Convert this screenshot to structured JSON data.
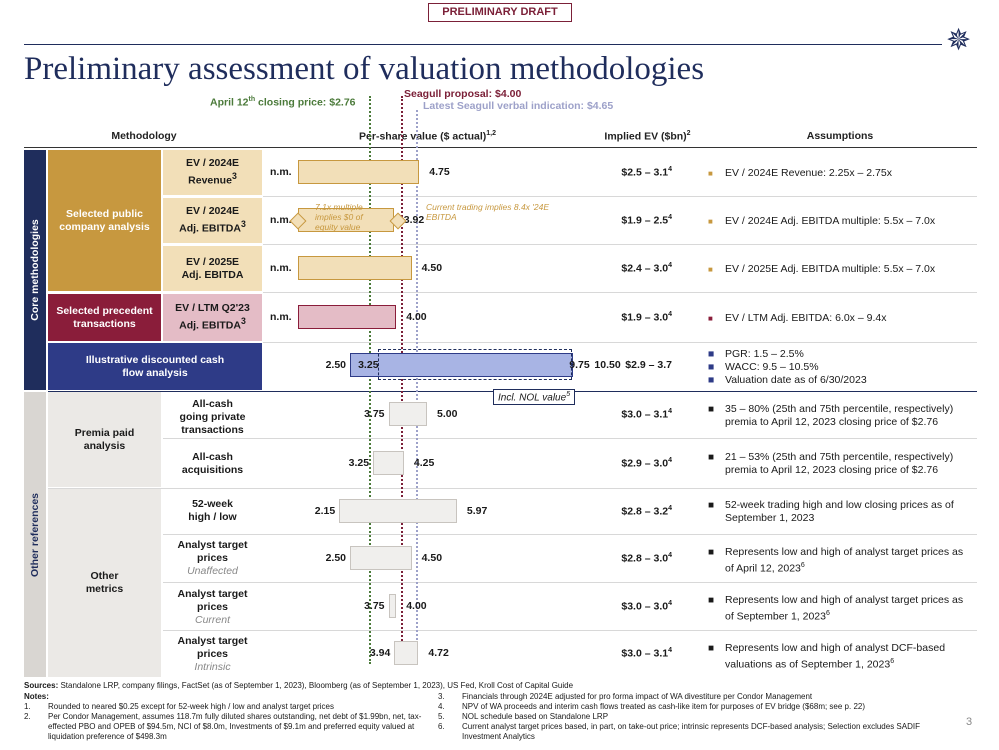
{
  "draft_label": "PRELIMINARY DRAFT",
  "title": "Preliminary assessment of valuation methodologies",
  "page_number": "3",
  "reference_lines": {
    "closing_price": "April 12th closing price: $2.76",
    "closing_price_value": 2.76,
    "proposal": "Seagull proposal: $4.00",
    "proposal_value": 4.0,
    "verbal_indication": "Latest Seagull verbal indication: $4.65",
    "verbal_value": 4.65
  },
  "headers": {
    "methodology": "Methodology",
    "per_share": "Per-share value ($ actual)",
    "per_share_sup": "1,2",
    "implied_ev": "Implied EV ($bn)",
    "implied_ev_sup": "2",
    "assumptions": "Assumptions"
  },
  "sections": {
    "core": "Core methodologies",
    "other": "Other references"
  },
  "categories": {
    "public_comps": "Selected public company analysis",
    "precedents": "Selected precedent transactions",
    "dcf": "Illustrative discounted cash flow analysis",
    "premia": "Premia paid analysis",
    "other_metrics": "Other metrics"
  },
  "rows": [
    {
      "method_line1": "EV / 2024E",
      "method_line2": "Revenue",
      "sup": "3",
      "low_label": "n.m.",
      "high_label": "4.75",
      "low": 0,
      "high": 4.75,
      "ev_range": "$2.5 – 3.1",
      "ev_sup": "4",
      "assumption": "EV / 2024E Revenue: 2.25x – 2.75x",
      "color": "#f2dfb8"
    },
    {
      "method_line1": "EV / 2024E",
      "method_line2": "Adj. EBITDA",
      "sup": "3",
      "low_label": "n.m.",
      "high_label": "3.92",
      "low": 0,
      "high": 3.92,
      "ev_range": "$1.9 – 2.5",
      "ev_sup": "4",
      "assumption": "EV / 2024E Adj. EBITDA multiple: 5.5x – 7.0x",
      "color": "#f2dfb8"
    },
    {
      "method_line1": "EV / 2025E",
      "method_line2": "Adj. EBITDA",
      "sup": "",
      "low_label": "n.m.",
      "high_label": "4.50",
      "low": 0,
      "high": 4.5,
      "ev_range": "$2.4 – 3.0",
      "ev_sup": "4",
      "assumption": "EV / 2025E Adj. EBITDA multiple: 5.5x – 7.0x",
      "color": "#f2dfb8"
    },
    {
      "method_line1": "EV / LTM Q2'23",
      "method_line2": "Adj. EBITDA",
      "sup": "3",
      "low_label": "n.m.",
      "high_label": "4.00",
      "low": 0,
      "high": 4.0,
      "ev_range": "$1.9 – 3.0",
      "ev_sup": "4",
      "assumption": "EV / LTM Adj. EBITDA: 6.0x – 9.4x",
      "color": "#e4bcc6"
    },
    {
      "low_label": "2.50",
      "high_label": "10.50",
      "low": 2.5,
      "high": 10.5,
      "inner_low_label": "3.25",
      "inner_high_label": "9.75",
      "ev_range": "$2.9 – 3.7",
      "ev_sup": ""
    },
    {
      "method_line1": "All-cash",
      "method_line2": "going private",
      "method_line3": "transactions",
      "low_label": "3.75",
      "high_label": "5.00",
      "low": 3.75,
      "high": 5.0,
      "ev_range": "$3.0 – 3.1",
      "ev_sup": "4",
      "assumption": "35 – 80% (25th and 75th percentile, respectively) premia to April 12, 2023 closing price of $2.76"
    },
    {
      "method_line1": "All-cash",
      "method_line2": "acquisitions",
      "low_label": "3.25",
      "high_label": "4.25",
      "low": 3.25,
      "high": 4.25,
      "ev_range": "$2.9 – 3.0",
      "ev_sup": "4",
      "assumption": "21 – 53% (25th and 75th percentile, respectively) premia to April 12, 2023 closing price of $2.76"
    },
    {
      "method_line1": "52-week",
      "method_line2": "high / low",
      "low_label": "2.15",
      "high_label": "5.97",
      "low": 2.15,
      "high": 5.97,
      "ev_range": "$2.8 – 3.2",
      "ev_sup": "4",
      "assumption": "52-week trading high and low closing prices as of September 1, 2023"
    },
    {
      "method_line1": "Analyst target",
      "method_line2": "prices",
      "method_sub": "Unaffected",
      "low_label": "2.50",
      "high_label": "4.50",
      "low": 2.5,
      "high": 4.5,
      "ev_range": "$2.8 – 3.0",
      "ev_sup": "4",
      "assumption": "Represents low and high of analyst target prices as of April 12, 2023",
      "assumption_sup": "6"
    },
    {
      "method_line1": "Analyst target",
      "method_line2": "prices",
      "method_sub": "Current",
      "low_label": "3.75",
      "high_label": "4.00",
      "low": 3.75,
      "high": 4.0,
      "ev_range": "$3.0 – 3.0",
      "ev_sup": "4",
      "assumption": "Represents low and high of analyst target prices as of September 1, 2023",
      "assumption_sup": "6"
    },
    {
      "method_line1": "Analyst target",
      "method_line2": "prices",
      "method_sub": "Intrinsic",
      "low_label": "3.94",
      "high_label": "4.72",
      "low": 3.94,
      "high": 4.72,
      "ev_range": "$3.0 – 3.1",
      "ev_sup": "4",
      "assumption": "Represents low and high of analyst DCF-based valuations as of September 1, 2023",
      "assumption_sup": "6"
    }
  ],
  "dcf_assumptions": [
    "PGR: 1.5 – 2.5%",
    "WACC: 9.5 – 10.5%",
    "Valuation date as of 6/30/2023"
  ],
  "dcf_nol_label": "Incl. NOL value",
  "dcf_nol_sup": "5",
  "annotations": {
    "multiple_note": "7.1x multiple implies $0 of equity value",
    "trading_note": "Current trading implies 8.4x '24E EBITDA"
  },
  "footer": {
    "sources_label": "Sources:",
    "sources": "Standalone LRP, company filings, FactSet (as of September 1, 2023), Bloomberg (as of September 1, 2023), US Fed, Kroll Cost of Capital Guide",
    "notes_label": "Notes:",
    "notes": [
      "Rounded to neared $0.25 except for 52-week high / low and analyst target prices",
      "Per Condor Management, assumes 118.7m fully diluted shares outstanding, net debt of $1.99bn, net, tax-effected PBO and OPEB of $94.5m, NCI of $8.0m, Investments of $9.1m and preferred equity valued at liquidation preference of $498.3m",
      "Financials through 2024E adjusted for pro forma impact of WA divestiture per Condor Management",
      "NPV of WA proceeds and interim cash flows treated as cash-like item for purposes of EV bridge ($68m; see p. 22)",
      "NOL schedule based on Standalone LRP",
      "Current analyst target prices based, in part, on take-out price; intrinsic represents DCF-based analysis; Selection excludes SADIF Investment Analytics"
    ]
  },
  "colors": {
    "navy": "#1f2d5c",
    "gold": "#c7983f",
    "maroon": "#8a1d3a",
    "dcf": "#2e3b87",
    "gray_tab": "#d9d6d2",
    "green": "#4b7a3a"
  }
}
